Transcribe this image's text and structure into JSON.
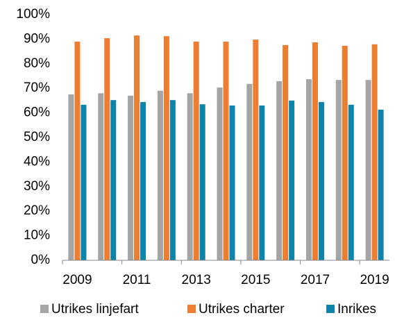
{
  "chart_data": {
    "type": "bar",
    "categories": [
      "2009",
      null,
      "2011",
      null,
      "2013",
      null,
      "2015",
      null,
      "2017",
      null,
      "2019"
    ],
    "series": [
      {
        "name": "Utrikes linjefart",
        "color": "#a5a5a5",
        "values": [
          67.5,
          68,
          67,
          69,
          68,
          70.3,
          71.8,
          72.9,
          73.7,
          73.4,
          73.4
        ]
      },
      {
        "name": "Utrikes charter",
        "color": "#ed7d31",
        "values": [
          89,
          90.4,
          91.5,
          91.2,
          89,
          89,
          89.8,
          87.6,
          88.7,
          87.3,
          87.9
        ]
      },
      {
        "name": "Inrikes",
        "color": "#0e84aa",
        "values": [
          63.3,
          65.2,
          64.4,
          65.2,
          63.5,
          63,
          63,
          65,
          64.4,
          63.3,
          61.3
        ]
      }
    ],
    "ylim": [
      0,
      100
    ],
    "yticks": [
      {
        "value": 0,
        "label": "0%"
      },
      {
        "value": 10,
        "label": "10%"
      },
      {
        "value": 20,
        "label": "20%"
      },
      {
        "value": 30,
        "label": "30%"
      },
      {
        "value": 40,
        "label": "40%"
      },
      {
        "value": 50,
        "label": "50%"
      },
      {
        "value": 60,
        "label": "60%"
      },
      {
        "value": 70,
        "label": "70%"
      },
      {
        "value": 80,
        "label": "80%"
      },
      {
        "value": 90,
        "label": "90%"
      },
      {
        "value": 100,
        "label": "100%"
      }
    ],
    "legend": "bottom"
  }
}
